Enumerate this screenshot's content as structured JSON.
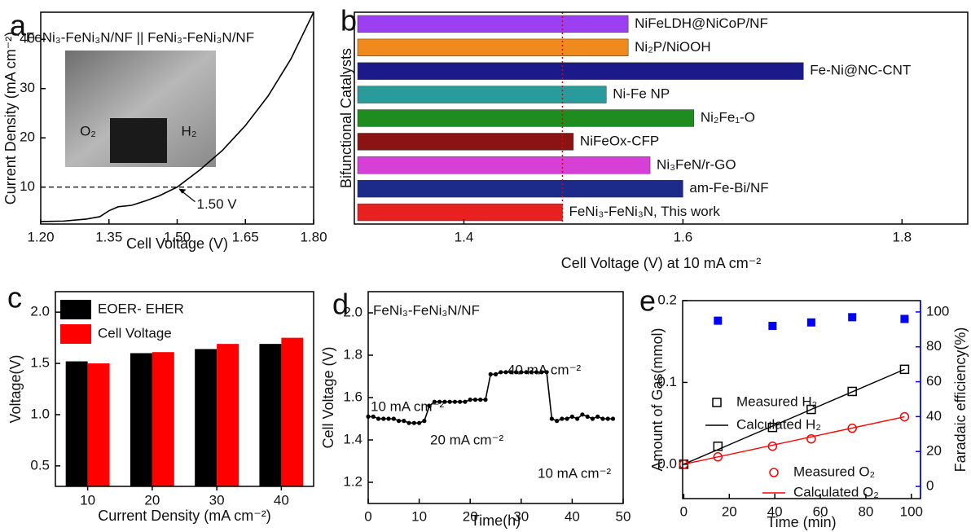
{
  "chart_data": [
    {
      "type": "line",
      "label": "a",
      "x_label": "Cell Voltage (V)",
      "y_label": "Current Density (mA cm⁻²)",
      "xlim": [
        1.2,
        1.8
      ],
      "xticks": [
        {
          "value": 1.2,
          "label": "1.20"
        },
        {
          "value": 1.35,
          "label": "1.35"
        },
        {
          "value": 1.5,
          "label": "1.50"
        },
        {
          "value": 1.65,
          "label": "1.65"
        },
        {
          "value": 1.8,
          "label": "1.80"
        }
      ],
      "ylim": [
        2.5,
        45.5
      ],
      "yticks": [
        10,
        20,
        30,
        40
      ],
      "x": [
        1.2,
        1.25,
        1.3,
        1.33,
        1.35,
        1.37,
        1.4,
        1.43,
        1.46,
        1.5,
        1.55,
        1.6,
        1.65,
        1.7,
        1.75,
        1.8
      ],
      "series": [
        {
          "color": "#000000",
          "values": [
            3.0,
            3.1,
            3.5,
            4.0,
            5.2,
            6.0,
            6.3,
            7.2,
            8.2,
            10.0,
            13.5,
            17.5,
            22.5,
            28.5,
            36.0,
            45.5
          ]
        }
      ],
      "reference_line": {
        "y": 10
      },
      "annotations": [
        "FeNi₃-FeNi₃N/NF || FeNi₃-FeNi₃N/NF",
        "O₂",
        "H₂",
        "1.50 V"
      ]
    },
    {
      "type": "bar",
      "orientation": "horizontal",
      "label": "b",
      "x_label": "Cell Voltage (V) at 10 mA cm⁻²",
      "y_label": "Bifunctional Catalysts",
      "categories": [
        "NiFeLDH@NiCoP/NF",
        "Ni₂P/NiOOH",
        "Fe-Ni@NC-CNT",
        "Ni-Fe NP",
        "Ni₂Fe₁-O",
        "NiFeOx-CFP",
        "Ni₃FeN/r-GO",
        "am-Fe-Bi/NF",
        "FeNi₃-FeNi₃N, This work"
      ],
      "values": [
        1.55,
        1.55,
        1.71,
        1.53,
        1.61,
        1.5,
        1.57,
        1.6,
        1.49
      ],
      "colors": [
        "#9b3ff0",
        "#f08a1c",
        "#1c1a8a",
        "#2a9a9a",
        "#1f8c1f",
        "#8a1414",
        "#d640d6",
        "#1c2a8a",
        "#e82020"
      ],
      "xlim": [
        1.3,
        1.86
      ],
      "xticks": [
        1.4,
        1.6,
        1.8
      ],
      "reference_line": {
        "x": 1.49,
        "color": "#e00000"
      }
    },
    {
      "type": "bar",
      "label": "c",
      "x_label": "Current Density (mA cm⁻²)",
      "y_label": "Voltage(V)",
      "categories": [
        "10",
        "20",
        "30",
        "40"
      ],
      "series": [
        {
          "name": "EOER- EHER",
          "color": "#000000",
          "values": [
            1.52,
            1.6,
            1.64,
            1.69
          ]
        },
        {
          "name": "Cell Voltage",
          "color": "#ff0000",
          "values": [
            1.5,
            1.61,
            1.69,
            1.75
          ]
        }
      ],
      "ylim": [
        0.3,
        2.2
      ],
      "yticks": [
        0.5,
        {
          "value": 1.0,
          "label": "1.0"
        },
        1.5,
        {
          "value": 2.0,
          "label": "2.0"
        }
      ]
    },
    {
      "type": "line",
      "label": "d",
      "x_label": "Time(h)",
      "y_label": "Cell Voltage (V)",
      "xlim": [
        0,
        50
      ],
      "xticks": [
        0,
        10,
        20,
        30,
        40,
        50
      ],
      "ylim": [
        1.1,
        2.1
      ],
      "yticks": [
        1.2,
        1.4,
        1.6,
        1.8,
        {
          "value": 2.0,
          "label": "2.0"
        }
      ],
      "x": [
        0,
        1,
        2,
        3,
        4,
        5,
        6,
        7,
        8,
        9,
        10,
        11,
        12,
        13,
        14,
        15,
        16,
        17,
        18,
        19,
        20,
        21,
        22,
        23,
        24,
        25,
        26,
        27,
        28,
        29,
        30,
        31,
        32,
        33,
        34,
        35,
        36,
        37,
        38,
        39,
        40,
        41,
        42,
        43,
        44,
        45,
        46,
        47,
        48
      ],
      "series": [
        {
          "color": "#000000",
          "marker": "circle",
          "values": [
            1.51,
            1.51,
            1.5,
            1.5,
            1.5,
            1.5,
            1.49,
            1.49,
            1.48,
            1.48,
            1.48,
            1.49,
            1.56,
            1.58,
            1.58,
            1.58,
            1.58,
            1.58,
            1.58,
            1.58,
            1.59,
            1.59,
            1.59,
            1.59,
            1.71,
            1.71,
            1.72,
            1.72,
            1.72,
            1.72,
            1.72,
            1.72,
            1.72,
            1.72,
            1.72,
            1.72,
            1.5,
            1.49,
            1.5,
            1.5,
            1.51,
            1.5,
            1.52,
            1.51,
            1.5,
            1.51,
            1.5,
            1.5,
            1.5
          ]
        }
      ],
      "annotations": [
        "FeNi₃-FeNi₃N/NF",
        "10 mA cm⁻²",
        "20 mA cm⁻²",
        "40 mA cm⁻²",
        "10 mA cm⁻²"
      ]
    },
    {
      "type": "scatter",
      "label": "e",
      "x_label": "Time (min)",
      "y_label": "Amount of Gas(mmol)",
      "y2_label": "Faradaic efficiency(%)",
      "xlim": [
        -0.5,
        104
      ],
      "xticks": [
        0,
        20,
        40,
        60,
        80,
        100
      ],
      "ylim": [
        -0.042,
        0.2
      ],
      "yticks": [
        {
          "value": 0.0,
          "label": "0.0"
        },
        0.1,
        0.2
      ],
      "y2lim": [
        -7,
        106.5
      ],
      "y2ticks": [
        0,
        20,
        40,
        60,
        80,
        100
      ],
      "y2_color": "#0000ff",
      "series": [
        {
          "name": "Measured H₂",
          "color": "#000000",
          "marker": "square-open",
          "x": [
            0,
            15,
            39,
            56,
            74,
            97
          ],
          "values": [
            0.0,
            0.022,
            0.045,
            0.067,
            0.089,
            0.116
          ]
        },
        {
          "name": "Calculated H₂",
          "color": "#000000",
          "marker": "none",
          "x": [
            0,
            97
          ],
          "values": [
            0.0,
            0.116
          ]
        },
        {
          "name": "Measured O₂",
          "color": "#ff0000",
          "marker": "circle-open",
          "x": [
            0,
            15,
            39,
            56,
            74,
            97
          ],
          "values": [
            0.0,
            0.009,
            0.022,
            0.031,
            0.044,
            0.058
          ]
        },
        {
          "name": "Calculated O₂",
          "color": "#ff0000",
          "marker": "none",
          "x": [
            0,
            97
          ],
          "values": [
            0.0,
            0.058
          ]
        },
        {
          "color": "#0000ff",
          "marker": "square",
          "axis": "y2",
          "x": [
            15,
            39,
            56,
            74,
            97
          ],
          "values": [
            95,
            92,
            94,
            97,
            96
          ]
        }
      ]
    }
  ]
}
